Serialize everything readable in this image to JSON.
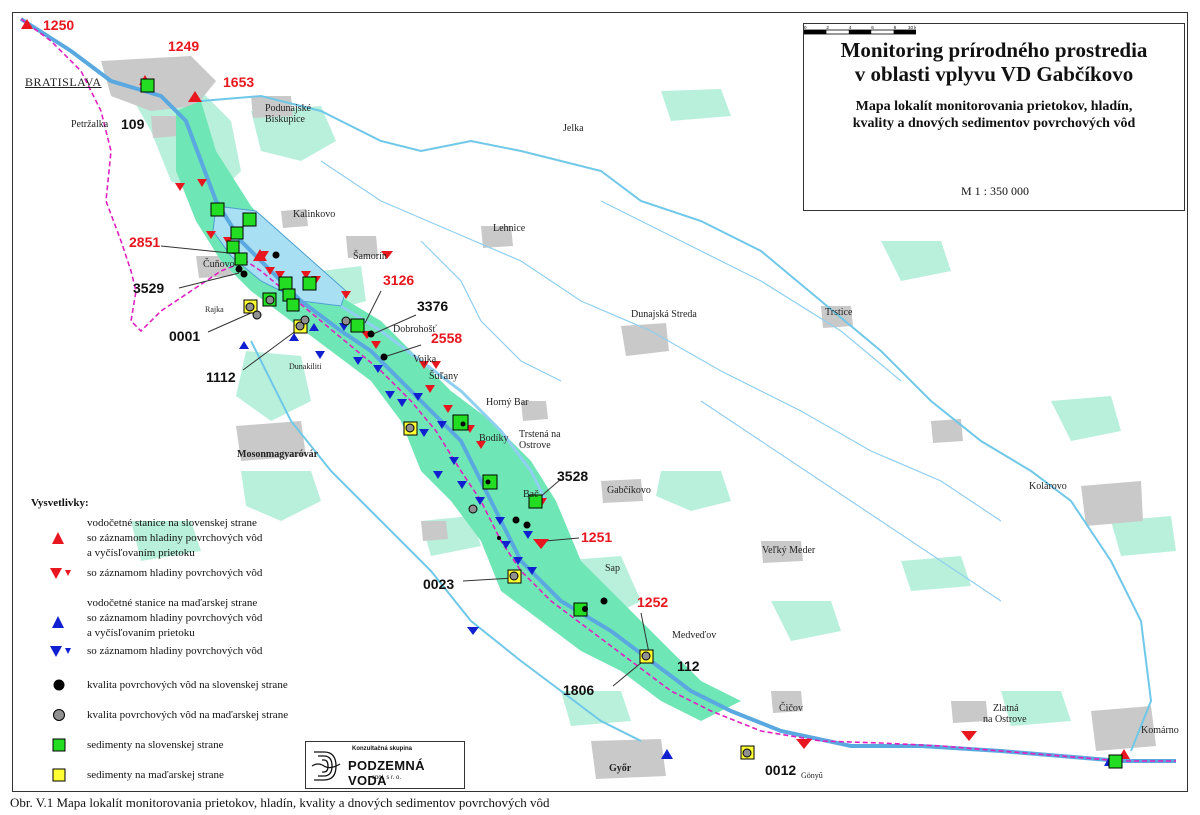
{
  "title": {
    "main_line1": "Monitoring prírodného prostredia",
    "main_line2": "v oblasti vplyvu VD Gabčíkovo",
    "sub_line1": "Mapa lokalít monitorovania prietokov, hladín,",
    "sub_line2": "kvality a dnových sedimentov povrchových vôd",
    "scale": "M 1 : 350 000",
    "scale_ticks": [
      "0",
      "2",
      "4",
      "6",
      "8",
      "10 km"
    ]
  },
  "towns": {
    "bratislava": "BRATISLAVA",
    "petrzalka": "Petržalka",
    "podunajske1": "Podunajské",
    "podunajske2": "Biskupice",
    "jelka": "Jelka",
    "kalinkovo": "Kalinkovo",
    "lehnice": "Lehnice",
    "samorin": "Šamorín",
    "cunovo": "Čuňovo",
    "rajka": "Rajka",
    "dunakiliti": "Dunakiliti",
    "dobrohost": "Dobrohošť",
    "vojka": "Vojka",
    "sulany": "Šuľany",
    "dunajska_streda": "Dunajská Streda",
    "trstice": "Trstice",
    "horny_bar": "Horný Bar",
    "trstena1": "Trstená na",
    "trstena2": "Ostrove",
    "bodiky": "Bodíky",
    "bac": "Bač",
    "gabcikovo": "Gabčíkovo",
    "mosonmagyarovar": "Mosonmagyaróvár",
    "sap": "Sap",
    "velky_meder": "Veľký Meder",
    "kolarovo": "Kolárovo",
    "medvedov": "Medveďov",
    "cicov": "Čičov",
    "zlatna1": "Zlatná",
    "zlatna2": "na Ostrove",
    "komarno": "Komárno",
    "gyor": "Győr",
    "gonyu": "Gönyű"
  },
  "stations": {
    "s1250": "1250",
    "s1249": "1249",
    "s1653": "1653",
    "s109": "109",
    "s2851": "2851",
    "s3529": "3529",
    "s3126": "3126",
    "s3376": "3376",
    "s0001": "0001",
    "s2558": "2558",
    "s1112": "1112",
    "s3528": "3528",
    "s1251": "1251",
    "s0023": "0023",
    "s1252": "1252",
    "s112": "112",
    "s1806": "1806",
    "s0012": "0012"
  },
  "legend": {
    "title": "Vysvetlivky:",
    "sk_gauge_1": "vodočetné stanice na slovenskej strane",
    "sk_gauge_2": "so záznamom hladiny povrchových vôd",
    "sk_gauge_3": "a vyčísľovaním prietoku",
    "sk_level": "so záznamom hladiny povrchových vôd",
    "hu_gauge_1": "vodočetné stanice na maďarskej strane",
    "hu_gauge_2": "so záznamom hladiny povrchových vôd",
    "hu_gauge_3": "a vyčísľovaním prietoku",
    "hu_level": "so záznamom hladiny povrchových vôd",
    "quality_sk": "kvalita povrchových vôd na slovenskej strane",
    "quality_hu": "kvalita povrchových vôd na maďarskej strane",
    "sediment_sk": "sedimenty na slovenskej strane",
    "sediment_hu": "sedimenty na maďarskej strane"
  },
  "logo": {
    "line1": "Konzultačná skupina",
    "line2": "PODZEMNÁ VODA",
    "line3": "spol. s r. o."
  },
  "caption": "Obr. V.1  Mapa lokalít monitorovania prietokov, hladín, kvality a dnových sedimentov povrchových vôd",
  "colors": {
    "water": "#a9dff3",
    "floodplain": "#6fe6b5",
    "forest": "#b9f0dc",
    "settlement": "#c9c9c9",
    "border": "#e020c0",
    "slovak_marker": "#e8161e",
    "hungarian_marker": "#1020d0",
    "sediment_sk": "#22dd22",
    "sediment_hu": "#ffff33",
    "quality_hu": "#909090"
  }
}
